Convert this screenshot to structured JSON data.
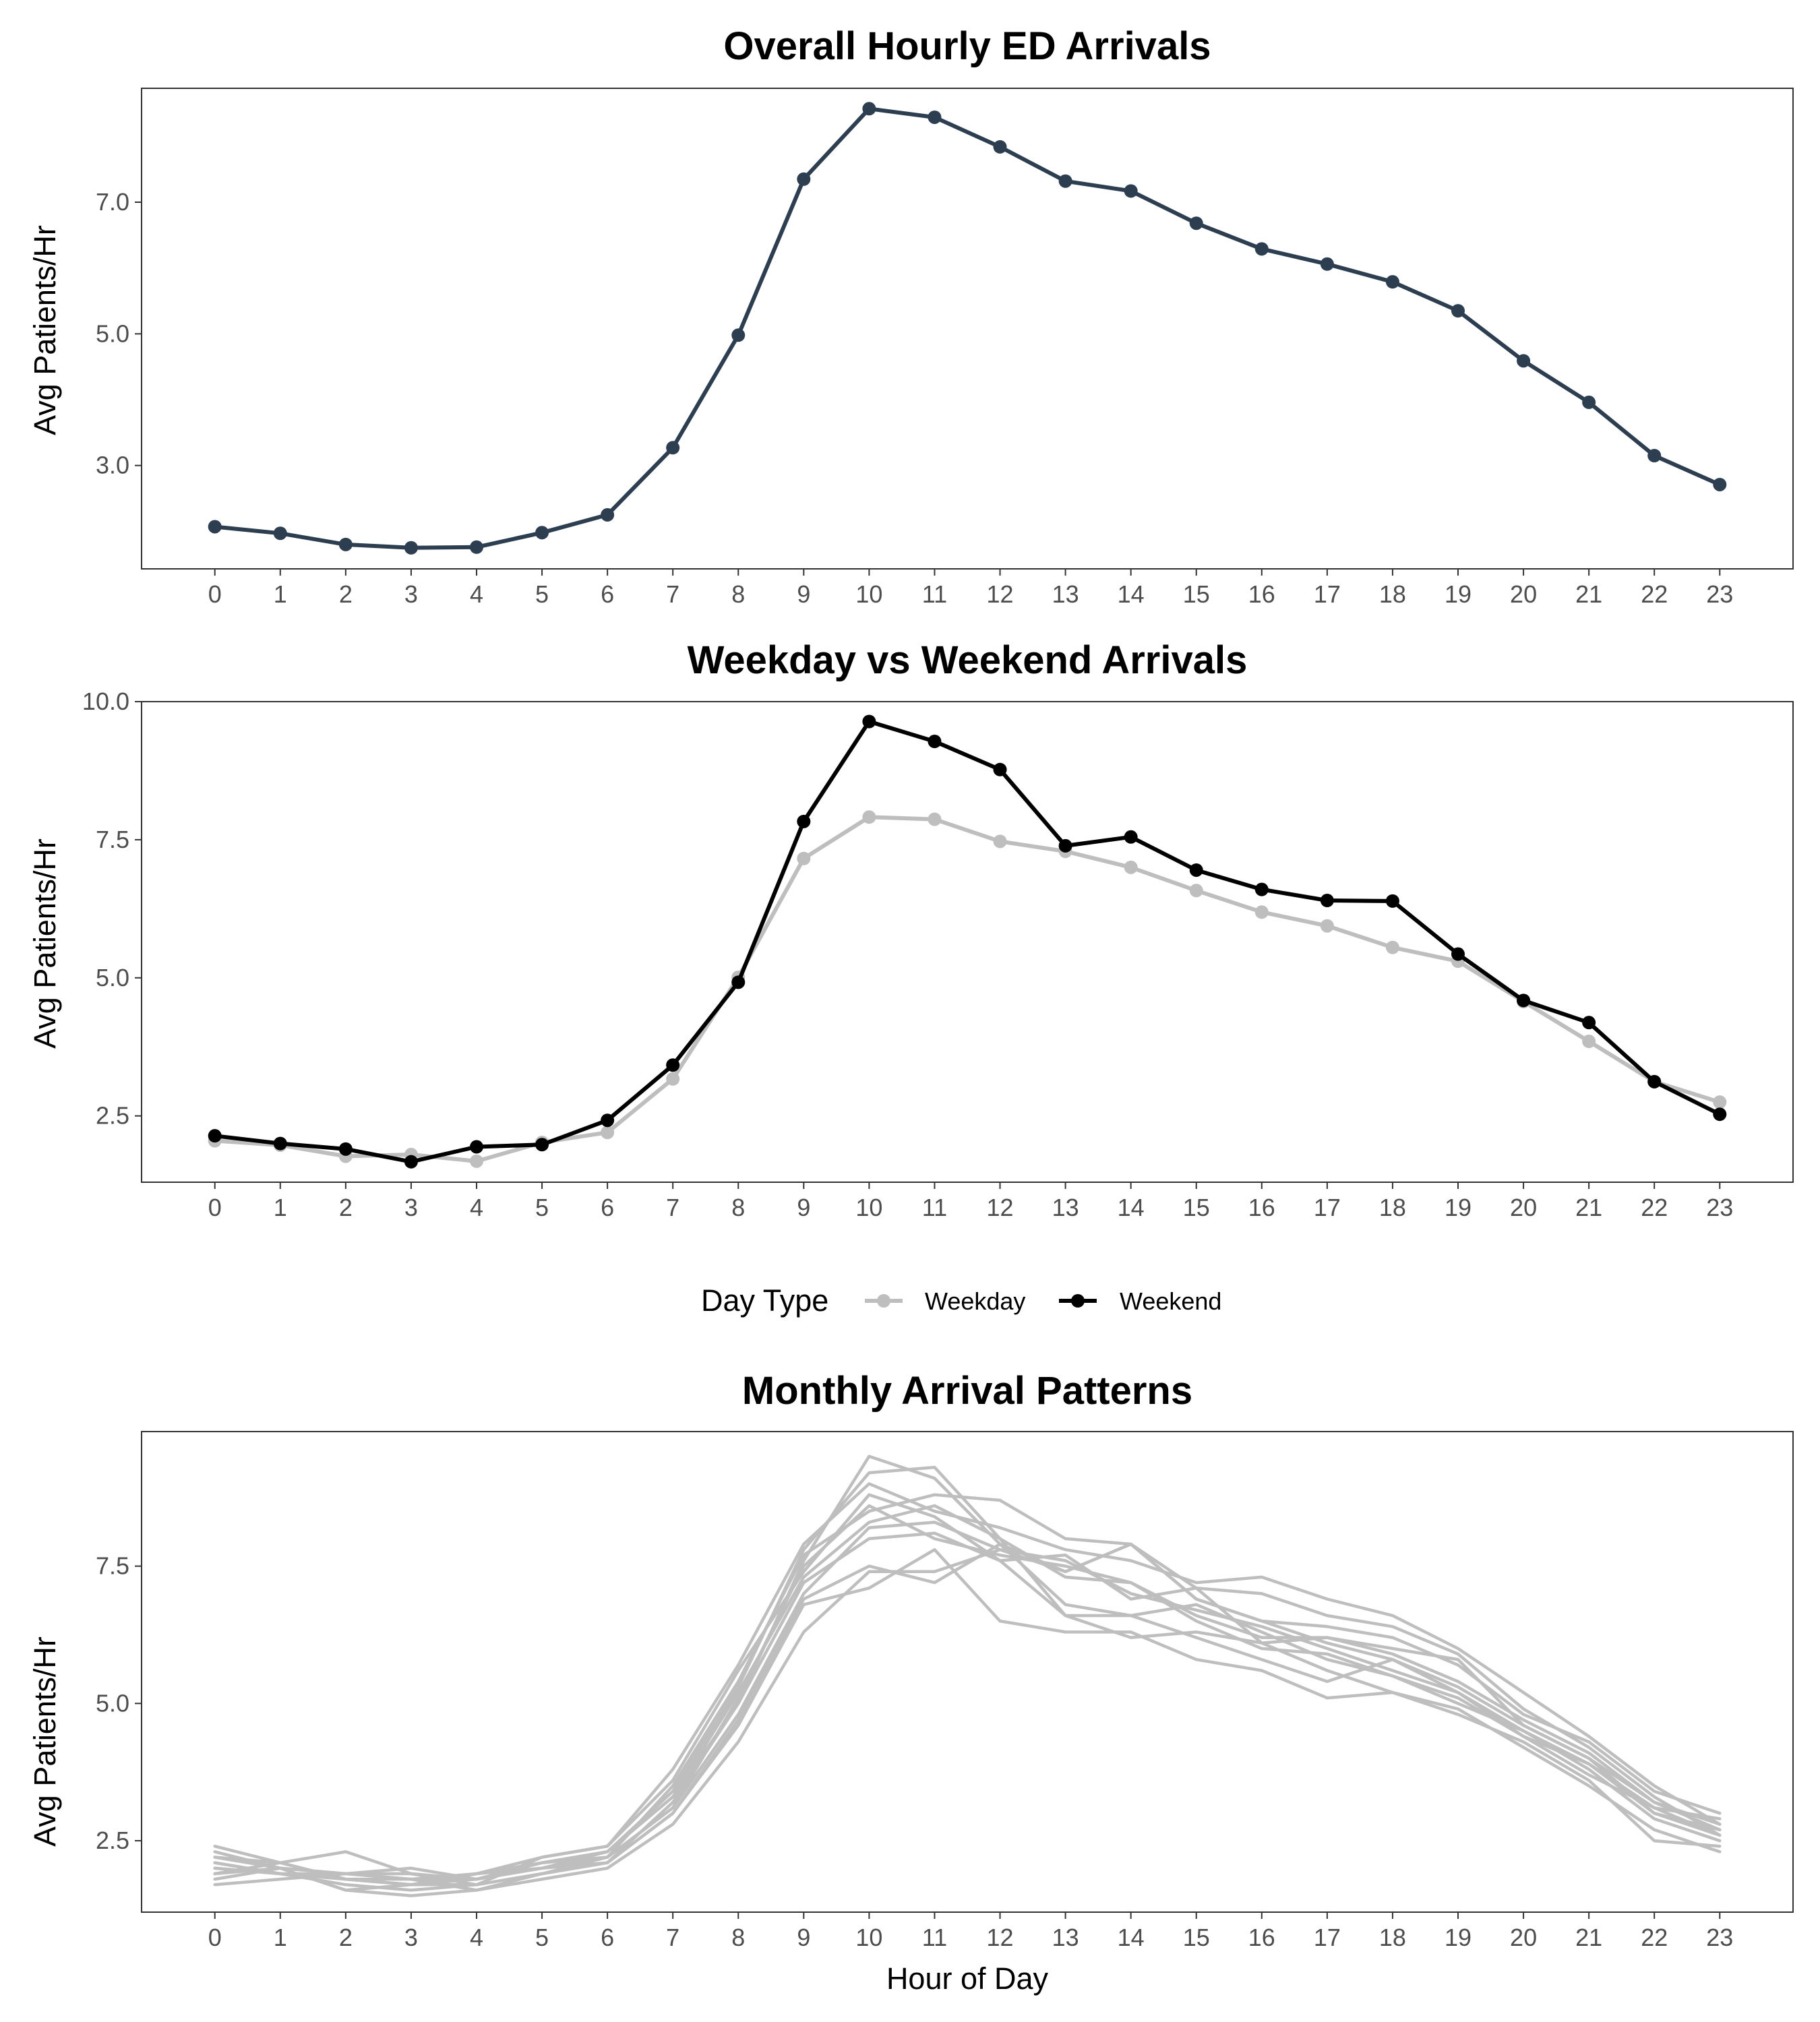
{
  "chart_data": [
    {
      "type": "line",
      "title": "Overall Hourly ED Arrivals",
      "xlabel": "",
      "ylabel": "Avg Patients/Hr",
      "x": [
        0,
        1,
        2,
        3,
        4,
        5,
        6,
        7,
        8,
        9,
        10,
        11,
        12,
        13,
        14,
        15,
        16,
        17,
        18,
        19,
        20,
        21,
        22,
        23
      ],
      "x_tick_labels": [
        "0",
        "1",
        "2",
        "3",
        "4",
        "5",
        "6",
        "7",
        "8",
        "9",
        "10",
        "11",
        "12",
        "13",
        "14",
        "15",
        "16",
        "17",
        "18",
        "19",
        "20",
        "21",
        "22",
        "23"
      ],
      "xlim": [
        -1.12,
        24.12
      ],
      "ylim": [
        1.43,
        8.73
      ],
      "y_ticks": [
        3,
        5,
        7
      ],
      "y_tick_labels": [
        "3.0",
        "5.0",
        "7.0"
      ],
      "grid": false,
      "series": [
        {
          "color": "#2c3e50",
          "values": [
            2.07,
            1.97,
            1.8,
            1.75,
            1.76,
            1.98,
            2.25,
            3.27,
            4.98,
            7.35,
            8.42,
            8.29,
            7.84,
            7.32,
            7.17,
            6.68,
            6.29,
            6.06,
            5.79,
            5.35,
            4.59,
            3.96,
            3.15,
            2.71
          ]
        }
      ]
    },
    {
      "type": "line",
      "title": "Weekday vs Weekend Arrivals",
      "xlabel": "",
      "ylabel": "Avg Patients/Hr",
      "x": [
        0,
        1,
        2,
        3,
        4,
        5,
        6,
        7,
        8,
        9,
        10,
        11,
        12,
        13,
        14,
        15,
        16,
        17,
        18,
        19,
        20,
        21,
        22,
        23
      ],
      "x_tick_labels": [
        "0",
        "1",
        "2",
        "3",
        "4",
        "5",
        "6",
        "7",
        "8",
        "9",
        "10",
        "11",
        "12",
        "13",
        "14",
        "15",
        "16",
        "17",
        "18",
        "19",
        "20",
        "21",
        "22",
        "23"
      ],
      "xlim": [
        -1.12,
        24.12
      ],
      "ylim": [
        1.3,
        10.0
      ],
      "y_ticks": [
        2.5,
        5.0,
        7.5,
        10.0
      ],
      "y_tick_labels": [
        "2.5",
        "5.0",
        "7.5",
        "10.0"
      ],
      "grid": false,
      "legend": {
        "title": "Day Type",
        "position": "bottom",
        "entries": [
          "Weekday",
          "Weekend"
        ]
      },
      "series": [
        {
          "name": "Weekday",
          "color": "#bebebe",
          "values": [
            2.05,
            1.97,
            1.77,
            1.8,
            1.68,
            2.02,
            2.2,
            3.17,
            5.01,
            7.16,
            7.91,
            7.87,
            7.47,
            7.29,
            7.0,
            6.58,
            6.19,
            5.94,
            5.55,
            5.3,
            4.57,
            3.85,
            3.12,
            2.75
          ]
        },
        {
          "name": "Weekend",
          "color": "#000000",
          "values": [
            2.14,
            2.0,
            1.9,
            1.67,
            1.94,
            1.98,
            2.42,
            3.42,
            4.92,
            7.83,
            9.64,
            9.28,
            8.77,
            7.39,
            7.55,
            6.95,
            6.6,
            6.4,
            6.39,
            5.43,
            4.59,
            4.19,
            3.12,
            2.53
          ]
        }
      ]
    },
    {
      "type": "line",
      "title": "Monthly Arrival Patterns",
      "xlabel": "Hour of Day",
      "ylabel": "Avg Patients/Hr",
      "x": [
        0,
        1,
        2,
        3,
        4,
        5,
        6,
        7,
        8,
        9,
        10,
        11,
        12,
        13,
        14,
        15,
        16,
        17,
        18,
        19,
        20,
        21,
        22,
        23
      ],
      "x_tick_labels": [
        "0",
        "1",
        "2",
        "3",
        "4",
        "5",
        "6",
        "7",
        "8",
        "9",
        "10",
        "11",
        "12",
        "13",
        "14",
        "15",
        "16",
        "17",
        "18",
        "19",
        "20",
        "21",
        "22",
        "23"
      ],
      "xlim": [
        -1.12,
        24.12
      ],
      "ylim": [
        1.2,
        9.95
      ],
      "y_ticks": [
        2.5,
        5.0,
        7.5
      ],
      "y_tick_labels": [
        "2.5",
        "5.0",
        "7.5"
      ],
      "grid": false,
      "series": [
        {
          "color": "#bebebe",
          "values": [
            2.4,
            2.1,
            1.8,
            1.7,
            1.9,
            2.1,
            2.3,
            3.3,
            5.0,
            7.6,
            9.5,
            9.1,
            7.9,
            7.4,
            7.9,
            6.9,
            6.5,
            6.1,
            5.8,
            5.3,
            4.6,
            4.0,
            3.0,
            2.7
          ]
        },
        {
          "color": "#bebebe",
          "values": [
            2.0,
            1.9,
            1.7,
            1.6,
            1.7,
            1.9,
            2.2,
            3.1,
            4.8,
            7.0,
            8.2,
            8.3,
            7.8,
            7.6,
            7.0,
            6.7,
            6.4,
            6.0,
            5.6,
            5.2,
            4.5,
            3.8,
            2.9,
            2.5
          ]
        },
        {
          "color": "#bebebe",
          "values": [
            2.2,
            2.0,
            1.9,
            1.8,
            1.8,
            2.0,
            2.3,
            3.4,
            5.3,
            7.8,
            9.2,
            9.3,
            8.0,
            7.3,
            7.2,
            6.6,
            6.2,
            6.2,
            5.9,
            5.4,
            4.7,
            4.1,
            3.2,
            2.8
          ]
        },
        {
          "color": "#bebebe",
          "values": [
            1.9,
            2.1,
            2.3,
            1.9,
            1.7,
            2.2,
            2.4,
            3.6,
            5.6,
            7.4,
            8.8,
            8.4,
            7.6,
            7.7,
            6.9,
            7.1,
            7.0,
            6.6,
            6.4,
            5.9,
            4.9,
            4.2,
            3.3,
            2.6
          ]
        },
        {
          "color": "#bebebe",
          "values": [
            2.1,
            1.9,
            1.8,
            1.7,
            1.9,
            2.0,
            2.1,
            3.0,
            4.7,
            6.9,
            7.5,
            7.2,
            7.9,
            6.8,
            6.6,
            6.8,
            6.3,
            5.8,
            5.5,
            5.1,
            4.4,
            3.7,
            3.1,
            2.9
          ]
        },
        {
          "color": "#bebebe",
          "values": [
            1.8,
            2.0,
            1.6,
            1.5,
            1.6,
            1.8,
            2.0,
            2.8,
            4.3,
            6.3,
            7.4,
            7.4,
            7.8,
            7.4,
            7.9,
            7.1,
            6.1,
            5.6,
            5.2,
            4.8,
            4.3,
            3.6,
            2.5,
            2.4
          ]
        },
        {
          "color": "#bebebe",
          "values": [
            2.3,
            2.0,
            1.9,
            2.0,
            1.8,
            2.1,
            2.2,
            3.5,
            5.4,
            7.7,
            8.5,
            8.8,
            8.7,
            8.0,
            7.9,
            6.9,
            6.5,
            6.4,
            6.2,
            5.7,
            4.8,
            4.3,
            3.4,
            3.0
          ]
        },
        {
          "color": "#bebebe",
          "values": [
            1.7,
            1.8,
            1.9,
            1.8,
            1.6,
            1.9,
            2.1,
            3.2,
            5.0,
            7.2,
            8.0,
            8.1,
            7.6,
            6.6,
            6.6,
            6.2,
            5.8,
            5.4,
            5.8,
            5.2,
            4.4,
            3.9,
            3.0,
            2.6
          ]
        },
        {
          "color": "#bebebe",
          "values": [
            2.2,
            2.1,
            1.8,
            1.8,
            1.9,
            2.2,
            2.4,
            3.8,
            5.7,
            7.9,
            9.0,
            8.5,
            8.2,
            7.8,
            7.6,
            7.2,
            7.3,
            6.9,
            6.6,
            6.0,
            5.2,
            4.4,
            3.5,
            2.8
          ]
        },
        {
          "color": "#bebebe",
          "values": [
            2.0,
            1.9,
            1.8,
            1.7,
            1.8,
            2.0,
            2.2,
            3.1,
            5.1,
            7.5,
            8.6,
            8.0,
            7.7,
            7.5,
            7.2,
            6.5,
            6.0,
            5.9,
            5.5,
            5.0,
            4.5,
            3.9,
            3.1,
            2.6
          ]
        },
        {
          "color": "#bebebe",
          "values": [
            1.9,
            2.0,
            1.6,
            1.7,
            1.7,
            1.9,
            2.1,
            3.0,
            4.6,
            6.8,
            7.1,
            7.8,
            6.5,
            6.3,
            6.3,
            5.8,
            5.6,
            5.1,
            5.2,
            4.9,
            4.2,
            3.5,
            2.7,
            2.3
          ]
        },
        {
          "color": "#bebebe",
          "values": [
            2.1,
            1.9,
            1.9,
            1.9,
            1.8,
            2.1,
            2.3,
            3.3,
            5.2,
            7.3,
            8.3,
            8.6,
            8.0,
            6.6,
            6.2,
            6.3,
            6.1,
            6.2,
            6.0,
            5.8,
            4.6,
            4.0,
            3.2,
            2.7
          ]
        }
      ]
    }
  ]
}
